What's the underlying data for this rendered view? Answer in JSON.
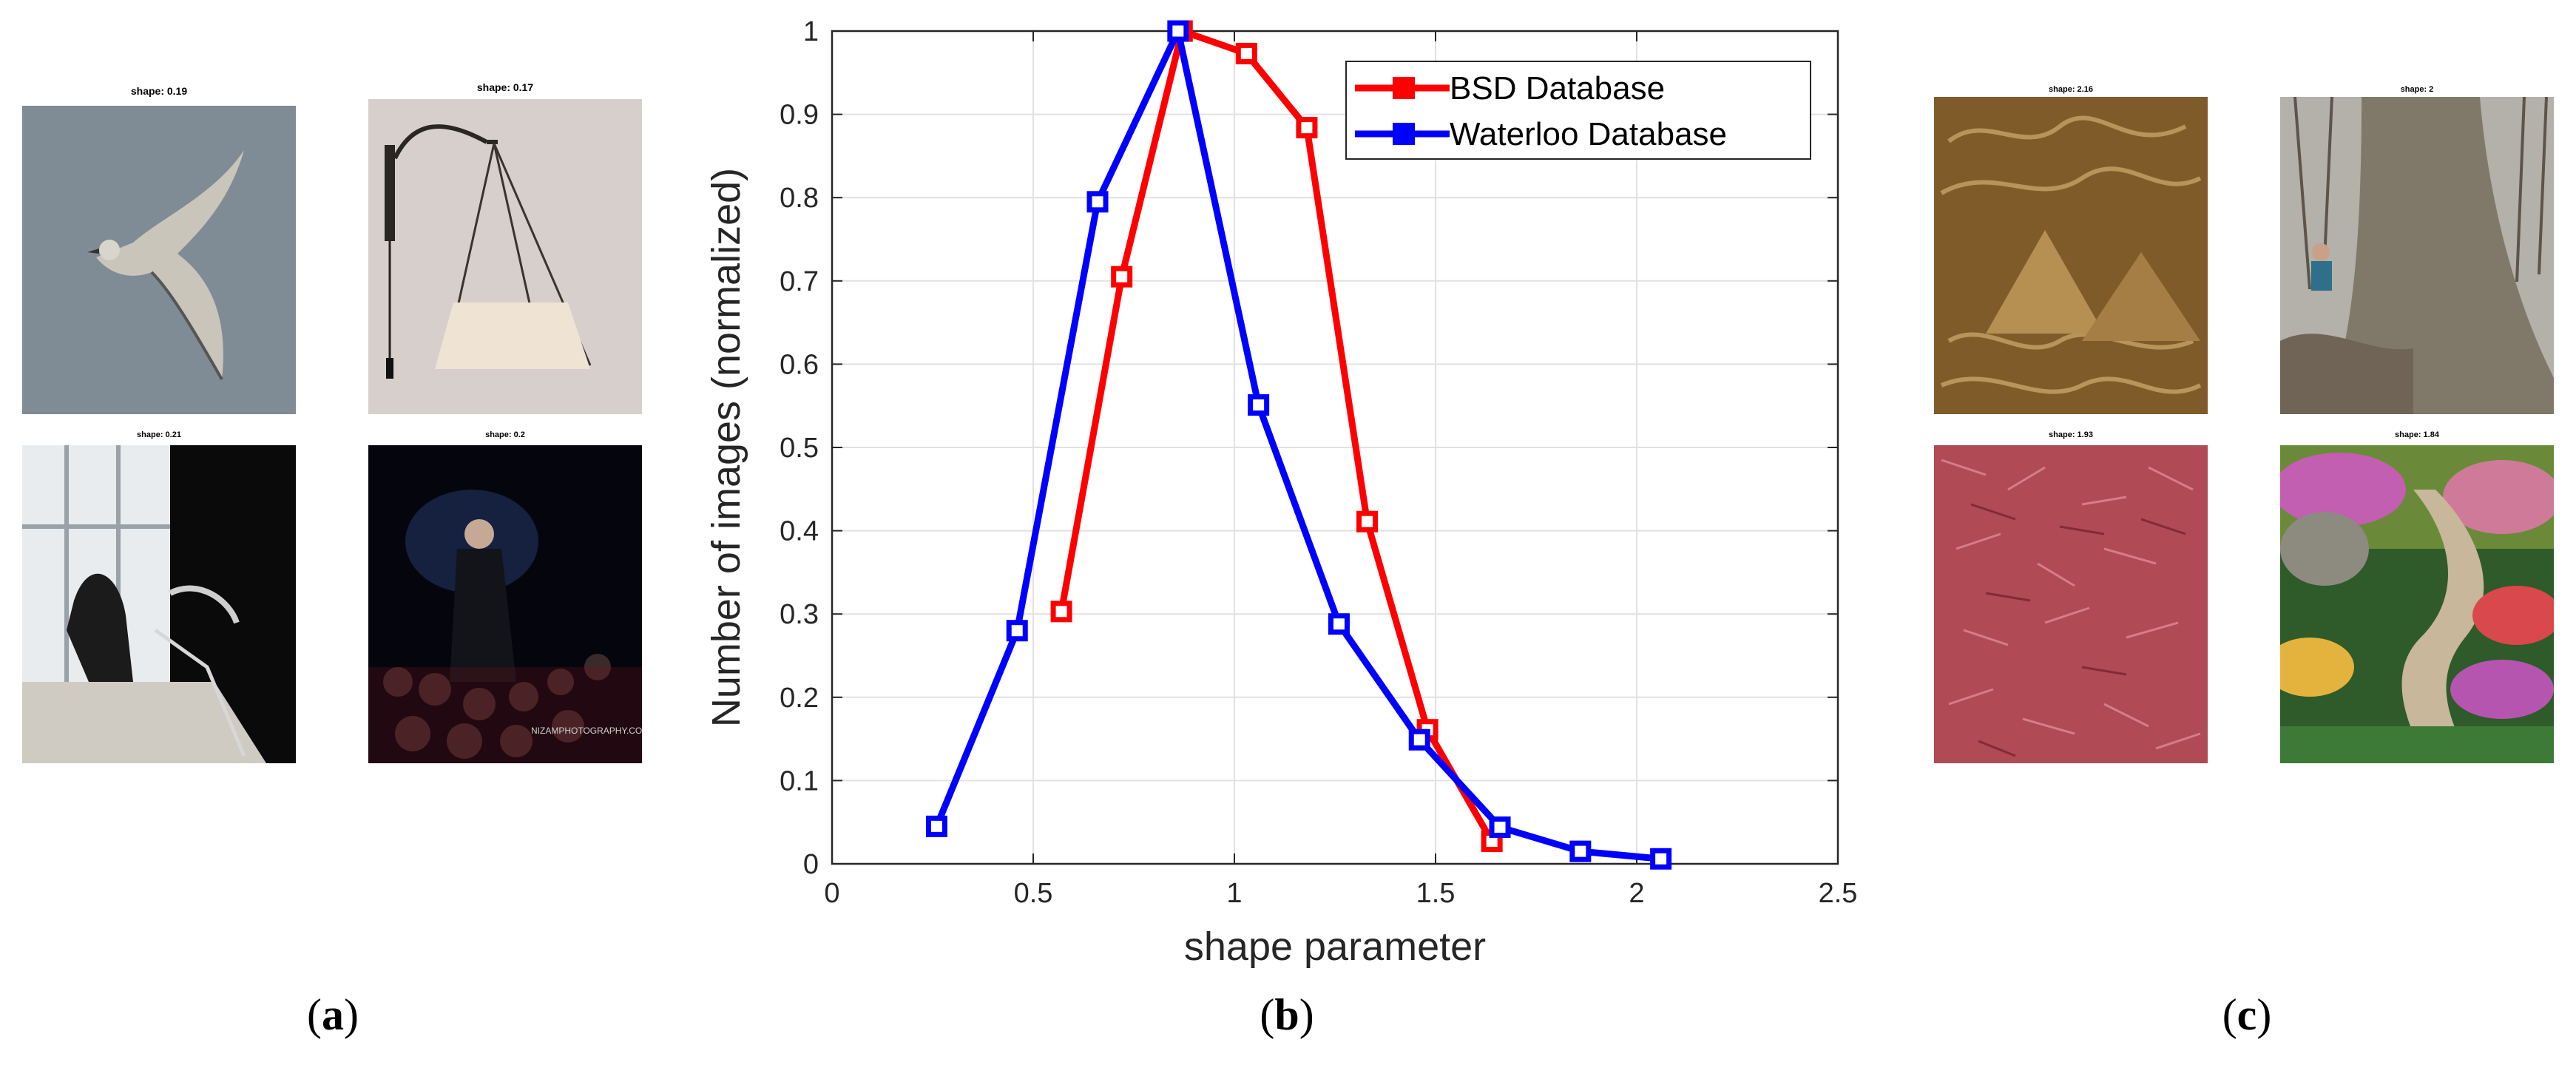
{
  "panels": {
    "a": {
      "label": "a",
      "thumbnails": [
        {
          "caption": "shape: 0.19",
          "subject": "bird in flight"
        },
        {
          "caption": "shape: 0.17",
          "subject": "wall lamp"
        },
        {
          "caption": "shape: 0.21",
          "subject": "shoes by window"
        },
        {
          "caption": "shape: 0.2",
          "subject": "audience at concert"
        }
      ]
    },
    "b": {
      "label": "b"
    },
    "c": {
      "label": "c",
      "thumbnails": [
        {
          "caption": "shape: 2.16",
          "subject": "carved relief"
        },
        {
          "caption": "shape: 2",
          "subject": "tree trunk"
        },
        {
          "caption": "shape: 1.93",
          "subject": "red mulch"
        },
        {
          "caption": "shape: 1.84",
          "subject": "garden stairs"
        }
      ]
    }
  },
  "watermark": "NIZAMPHOTOGRAPHY.COM",
  "chart_data": {
    "type": "line",
    "xlabel": "shape parameter",
    "ylabel": "Number of images (normalized)",
    "xlim": [
      0,
      2.5
    ],
    "ylim": [
      0,
      1
    ],
    "xticks": [
      "0",
      "0.5",
      "1",
      "1.5",
      "2",
      "2.5"
    ],
    "xtick_values": [
      0,
      0.5,
      1,
      1.5,
      2,
      2.5
    ],
    "yticks": [
      "0",
      "0.1",
      "0.2",
      "0.3",
      "0.4",
      "0.5",
      "0.6",
      "0.7",
      "0.8",
      "0.9",
      "1"
    ],
    "ytick_values": [
      0,
      0.1,
      0.2,
      0.3,
      0.4,
      0.5,
      0.6,
      0.7,
      0.8,
      0.9,
      1
    ],
    "grid": true,
    "legend_position": "top-right",
    "series": [
      {
        "name": "BSD Database",
        "color": "#ff0000",
        "marker": "square",
        "x": [
          0.57,
          0.72,
          0.87,
          1.03,
          1.18,
          1.33,
          1.48,
          1.64
        ],
        "y": [
          0.303,
          0.705,
          1.0,
          0.973,
          0.884,
          0.411,
          0.161,
          0.027
        ]
      },
      {
        "name": "Waterloo Database",
        "color": "#0000ff",
        "marker": "square",
        "x": [
          0.26,
          0.46,
          0.66,
          0.86,
          1.06,
          1.26,
          1.46,
          1.66,
          1.86,
          2.06
        ],
        "y": [
          0.045,
          0.28,
          0.795,
          1.0,
          0.551,
          0.288,
          0.149,
          0.044,
          0.015,
          0.006
        ]
      }
    ]
  }
}
